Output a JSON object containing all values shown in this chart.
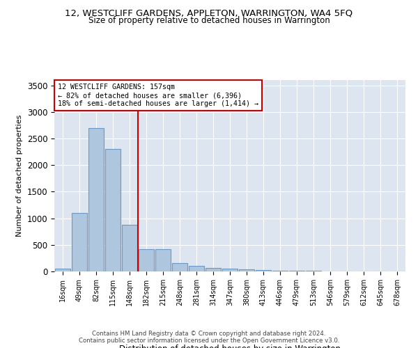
{
  "title": "12, WESTCLIFF GARDENS, APPLETON, WARRINGTON, WA4 5FQ",
  "subtitle": "Size of property relative to detached houses in Warrington",
  "xlabel": "Distribution of detached houses by size in Warrington",
  "ylabel": "Number of detached properties",
  "categories": [
    "16sqm",
    "49sqm",
    "82sqm",
    "115sqm",
    "148sqm",
    "182sqm",
    "215sqm",
    "248sqm",
    "281sqm",
    "314sqm",
    "347sqm",
    "380sqm",
    "413sqm",
    "446sqm",
    "479sqm",
    "513sqm",
    "546sqm",
    "579sqm",
    "612sqm",
    "645sqm",
    "678sqm"
  ],
  "values": [
    50,
    1100,
    2700,
    2300,
    880,
    420,
    420,
    160,
    100,
    70,
    55,
    40,
    30,
    15,
    10,
    8,
    5,
    3,
    2,
    1,
    1
  ],
  "bar_color": "#aec6de",
  "bar_edge_color": "#6699cc",
  "vline_x": 4.5,
  "vline_color": "#cc0000",
  "annotation_text": "12 WESTCLIFF GARDENS: 157sqm\n← 82% of detached houses are smaller (6,396)\n18% of semi-detached houses are larger (1,414) →",
  "annotation_box_color": "#ffffff",
  "annotation_box_edge": "#cc0000",
  "ylim": [
    0,
    3600
  ],
  "yticks": [
    0,
    500,
    1000,
    1500,
    2000,
    2500,
    3000,
    3500
  ],
  "bg_color": "#dde6f0",
  "footer_line1": "Contains HM Land Registry data © Crown copyright and database right 2024.",
  "footer_line2": "Contains public sector information licensed under the Open Government Licence v3.0."
}
